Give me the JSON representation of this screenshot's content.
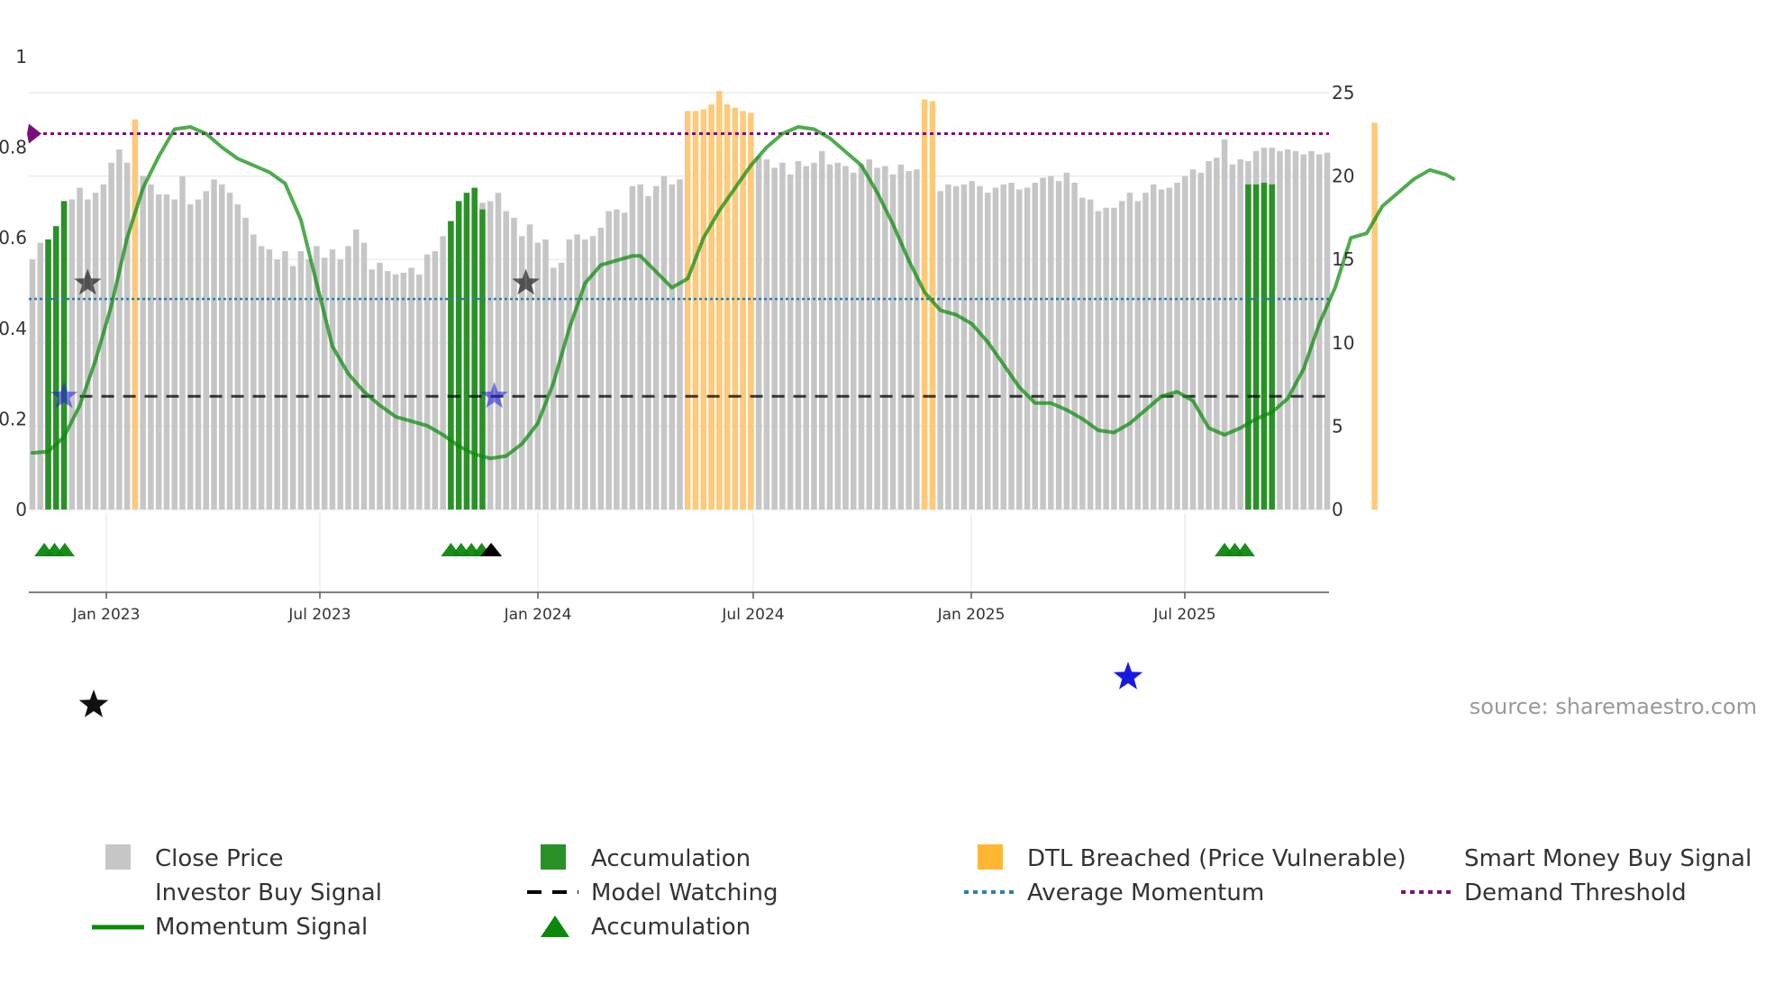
{
  "chart_data": {
    "type": "bar",
    "source_text": "source: sharemaestro.com",
    "left_axis": {
      "range": [
        0,
        1
      ],
      "ticks": [
        "0",
        "0.2",
        "0.4",
        "0.6",
        "0.8",
        "1"
      ]
    },
    "right_axis": {
      "range": [
        0,
        25
      ],
      "ticks": [
        "0",
        "5",
        "10",
        "15",
        "20",
        "25"
      ]
    },
    "x_axis": {
      "ticks": [
        "Jan 2023",
        "Jul 2023",
        "Jan 2024",
        "Jul 2024",
        "Jan 2025",
        "Jul 2025"
      ]
    },
    "demand_threshold": 0.83,
    "average_momentum": 0.465,
    "model_watching_level": 0.25,
    "close_price": [
      15,
      16,
      16.2,
      17,
      18.5,
      18.6,
      19.3,
      18.6,
      19,
      19.5,
      20.8,
      21.6,
      20.8,
      20.5,
      20,
      19.5,
      18.9,
      18.9,
      18.6,
      20,
      18.3,
      18.6,
      19.1,
      19.8,
      19.5,
      19,
      18.3,
      17.5,
      16.5,
      15.8,
      15.6,
      15,
      15.5,
      14.6,
      15.5,
      15,
      15.8,
      15.1,
      15.6,
      15,
      15.8,
      16.8,
      16,
      14.4,
      14.8,
      14.3,
      14.1,
      14.2,
      14.5,
      14.1,
      15.3,
      15.5,
      16.4,
      17.3,
      18.5,
      18.1,
      17.8,
      18.4,
      18.5,
      19,
      17.9,
      17.5,
      16.4,
      17.1,
      16,
      16.2,
      14.5,
      14.8,
      16.2,
      16.5,
      16.2,
      16.4,
      16.9,
      17.9,
      18,
      17.8,
      19.4,
      19.5,
      18.8,
      19.4,
      20,
      19.5,
      19.8,
      20.2,
      19.9,
      20.1,
      20.7,
      21.2,
      21.1,
      20.3,
      20.1,
      20.5,
      21.2,
      21,
      20.5,
      20.8,
      20.1,
      20.9,
      20.6,
      20.8,
      21.5,
      20.7,
      20.8,
      20.6,
      20.2,
      20.7,
      21,
      20.5,
      20.6,
      20.1,
      20.7,
      20.3,
      20.4,
      19.8,
      19.2,
      19.1,
      19.5,
      19.4,
      19.5,
      19.7,
      19.4,
      19,
      19.3,
      19.5,
      19.6,
      19.2,
      19.3,
      19.6,
      19.9,
      20,
      19.7,
      20.2,
      19.6,
      18.7,
      18.6,
      17.9,
      18.1,
      18.1,
      18.5,
      19,
      18.5,
      19,
      19.5,
      19.2,
      19.3,
      19.6,
      20,
      20.4,
      20.2,
      20.9,
      21.1,
      22.2,
      20.7,
      21,
      20.9,
      21.5,
      21.7,
      21.7,
      21.5,
      21.6,
      21.5,
      21.3,
      21.5,
      21.3,
      21.4
    ],
    "accumulation_bars": [
      [
        2,
        16.2
      ],
      [
        3,
        17
      ],
      [
        4,
        18.5
      ],
      [
        53,
        17.3
      ],
      [
        54,
        18.5
      ],
      [
        55,
        19
      ],
      [
        56,
        19.3
      ],
      [
        57,
        18
      ],
      [
        154,
        19.5
      ],
      [
        155,
        19.5
      ],
      [
        156,
        19.6
      ],
      [
        157,
        19.5
      ]
    ],
    "dtl_breached_bars": [
      [
        13,
        23.4
      ],
      [
        83,
        23.9
      ],
      [
        84,
        23.9
      ],
      [
        85,
        24
      ],
      [
        86,
        24.3
      ],
      [
        87,
        25.1
      ],
      [
        88,
        24.3
      ],
      [
        89,
        24.1
      ],
      [
        90,
        23.9
      ],
      [
        91,
        23.8
      ],
      [
        113,
        24.6
      ],
      [
        114,
        24.5
      ],
      [
        170,
        23.2
      ]
    ],
    "momentum_signal": [
      [
        0,
        0.125
      ],
      [
        2,
        0.128
      ],
      [
        4,
        0.16
      ],
      [
        6,
        0.23
      ],
      [
        8,
        0.33
      ],
      [
        10,
        0.45
      ],
      [
        12,
        0.6
      ],
      [
        14,
        0.71
      ],
      [
        16,
        0.78
      ],
      [
        18,
        0.84
      ],
      [
        20,
        0.845
      ],
      [
        22,
        0.83
      ],
      [
        24,
        0.8
      ],
      [
        26,
        0.775
      ],
      [
        28,
        0.76
      ],
      [
        30,
        0.745
      ],
      [
        32,
        0.72
      ],
      [
        34,
        0.64
      ],
      [
        36,
        0.5
      ],
      [
        38,
        0.36
      ],
      [
        40,
        0.3
      ],
      [
        42,
        0.26
      ],
      [
        44,
        0.23
      ],
      [
        46,
        0.205
      ],
      [
        48,
        0.195
      ],
      [
        50,
        0.185
      ],
      [
        52,
        0.165
      ],
      [
        54,
        0.14
      ],
      [
        56,
        0.122
      ],
      [
        58,
        0.113
      ],
      [
        60,
        0.118
      ],
      [
        62,
        0.145
      ],
      [
        64,
        0.19
      ],
      [
        66,
        0.28
      ],
      [
        68,
        0.4
      ],
      [
        70,
        0.5
      ],
      [
        72,
        0.54
      ],
      [
        74,
        0.55
      ],
      [
        76,
        0.56
      ],
      [
        77,
        0.56
      ],
      [
        79,
        0.525
      ],
      [
        81,
        0.49
      ],
      [
        83,
        0.51
      ],
      [
        85,
        0.6
      ],
      [
        87,
        0.66
      ],
      [
        89,
        0.71
      ],
      [
        91,
        0.76
      ],
      [
        93,
        0.8
      ],
      [
        95,
        0.83
      ],
      [
        97,
        0.845
      ],
      [
        99,
        0.84
      ],
      [
        101,
        0.82
      ],
      [
        103,
        0.79
      ],
      [
        105,
        0.76
      ],
      [
        107,
        0.7
      ],
      [
        109,
        0.63
      ],
      [
        111,
        0.55
      ],
      [
        113,
        0.48
      ],
      [
        115,
        0.44
      ],
      [
        117,
        0.43
      ],
      [
        119,
        0.41
      ],
      [
        121,
        0.37
      ],
      [
        123,
        0.32
      ],
      [
        125,
        0.27
      ],
      [
        127,
        0.235
      ],
      [
        129,
        0.235
      ],
      [
        131,
        0.22
      ],
      [
        133,
        0.2
      ],
      [
        135,
        0.175
      ],
      [
        137,
        0.17
      ],
      [
        139,
        0.19
      ],
      [
        141,
        0.22
      ],
      [
        143,
        0.25
      ],
      [
        145,
        0.26
      ],
      [
        147,
        0.24
      ],
      [
        149,
        0.18
      ],
      [
        151,
        0.165
      ],
      [
        153,
        0.18
      ],
      [
        155,
        0.2
      ],
      [
        157,
        0.215
      ],
      [
        159,
        0.245
      ],
      [
        161,
        0.31
      ],
      [
        163,
        0.41
      ],
      [
        165,
        0.49
      ],
      [
        167,
        0.6
      ],
      [
        169,
        0.61
      ],
      [
        171,
        0.67
      ],
      [
        173,
        0.7
      ],
      [
        175,
        0.73
      ],
      [
        177,
        0.75
      ],
      [
        179,
        0.74
      ],
      [
        180,
        0.73
      ]
    ],
    "investor_buy_signals": [
      {
        "x": 7,
        "y": 0.5
      },
      {
        "x": 62.5,
        "y": 0.5
      }
    ],
    "smart_money_buy_signals": [
      {
        "x": 4,
        "y": 0.25
      },
      {
        "x": 58.5,
        "y": 0.25
      }
    ],
    "accumulation_markers_green": [
      1.5,
      2.8,
      4.1,
      53,
      54.3,
      55.6,
      56.9,
      151,
      152.3,
      153.6
    ],
    "accumulation_markers_black": [
      58.1
    ],
    "model_watching_start": 6,
    "threshold_marker_at_start": true
  },
  "colors": {
    "close_price": "#c6c6c6",
    "accumulation": "#2a9127",
    "dtl": "#ffc978",
    "momentum": "#0b8a0b",
    "investor_star": "#111111",
    "smart_star": "#1a1adf",
    "avg_momentum": "#2e7ea9",
    "demand_threshold": "#7b0f7b",
    "model_watching": "#000000",
    "acc_marker": "#0c870c"
  },
  "legend": {
    "close_price": "Close Price",
    "accumulation_bar": "Accumulation",
    "dtl_breached": "DTL Breached (Price Vulnerable)",
    "smart_money": "Smart Money Buy Signal",
    "investor_buy": "Investor Buy Signal",
    "model_watching": "Model Watching",
    "average_momentum": "Average Momentum",
    "demand_threshold": "Demand Threshold",
    "momentum_signal": "Momentum Signal",
    "accumulation_marker": "Accumulation"
  }
}
